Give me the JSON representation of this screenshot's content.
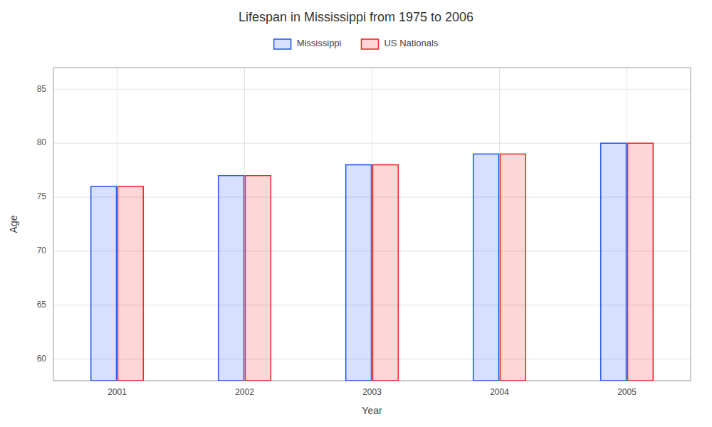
{
  "chart_data": {
    "type": "bar",
    "title": "Lifespan in Mississippi from 1975 to 2006",
    "x_label": "Year",
    "y_label": "Age",
    "categories": [
      "2001",
      "2002",
      "2003",
      "2004",
      "2005"
    ],
    "series": [
      {
        "name": "Mississippi",
        "color": "#2255ee",
        "values": [
          76,
          77,
          78,
          79,
          80
        ]
      },
      {
        "name": "US Nationals",
        "color": "#ee2222",
        "values": [
          76,
          77,
          78,
          79,
          80
        ]
      }
    ],
    "ylim": [
      58,
      87
    ],
    "yticks": [
      60,
      65,
      70,
      75,
      80,
      85
    ],
    "grid": true,
    "legend": "top"
  }
}
